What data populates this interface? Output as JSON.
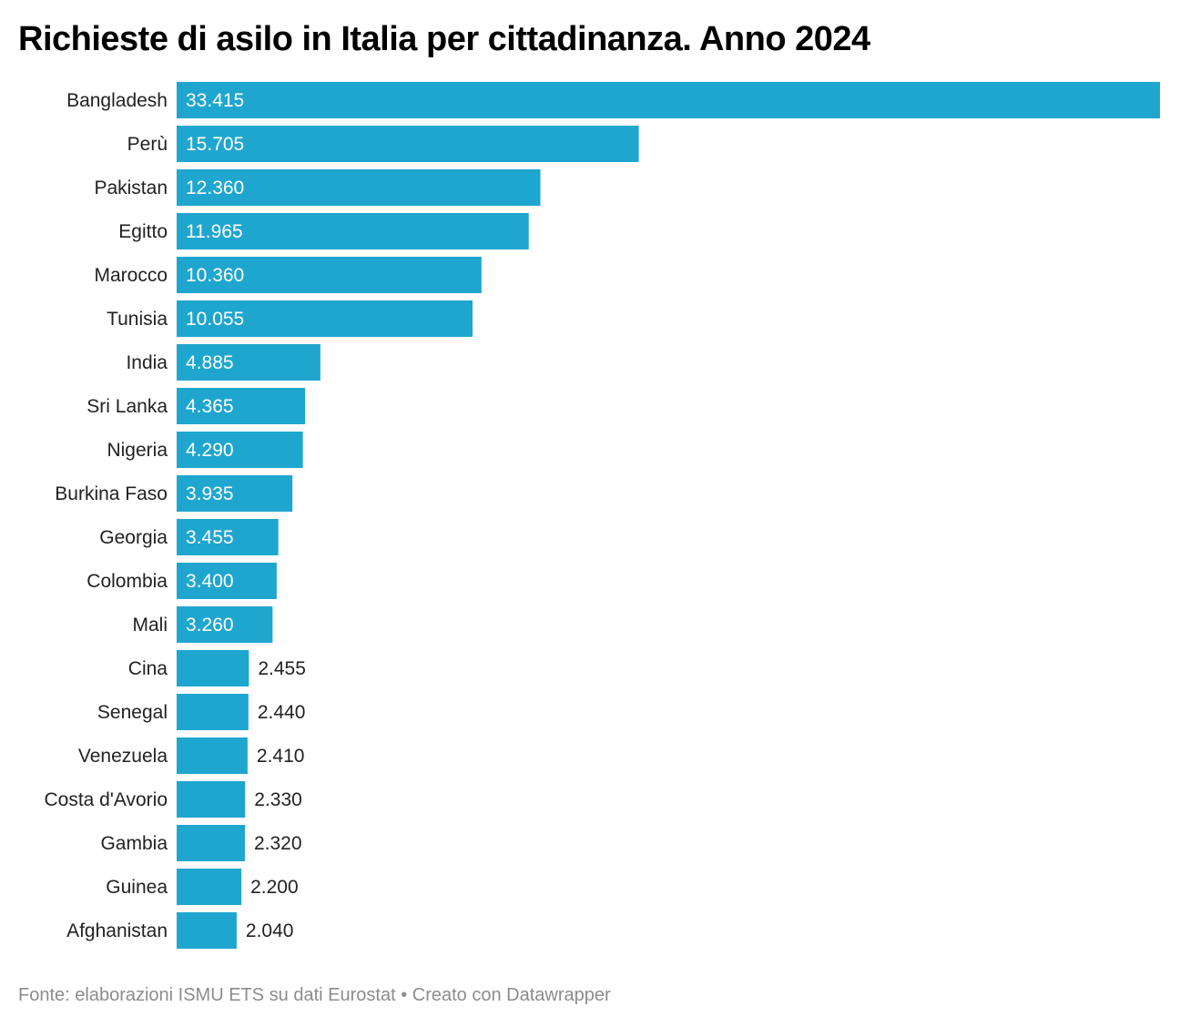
{
  "chart_data": {
    "type": "bar",
    "orientation": "horizontal",
    "title": "Richieste di asilo in Italia per cittadinanza. Anno 2024",
    "xlabel": "",
    "ylabel": "",
    "categories": [
      "Bangladesh",
      "Perù",
      "Pakistan",
      "Egitto",
      "Marocco",
      "Tunisia",
      "India",
      "Sri Lanka",
      "Nigeria",
      "Burkina Faso",
      "Georgia",
      "Colombia",
      "Mali",
      "Cina",
      "Senegal",
      "Venezuela",
      "Costa d'Avorio",
      "Gambia",
      "Guinea",
      "Afghanistan"
    ],
    "values": [
      33415,
      15705,
      12360,
      11965,
      10360,
      10055,
      4885,
      4365,
      4290,
      3935,
      3455,
      3400,
      3260,
      2455,
      2440,
      2410,
      2330,
      2320,
      2200,
      2040
    ],
    "value_labels": [
      "33.415",
      "15.705",
      "12.360",
      "11.965",
      "10.360",
      "10.055",
      "4.885",
      "4.365",
      "4.290",
      "3.935",
      "3.455",
      "3.400",
      "3.260",
      "2.455",
      "2.440",
      "2.410",
      "2.330",
      "2.320",
      "2.200",
      "2.040"
    ],
    "xlim": [
      0,
      33415
    ],
    "grid": false,
    "bar_color": "#1fa6cf"
  },
  "footer": {
    "source": "Fonte: elaborazioni ISMU ETS su dati Eurostat • Creato con Datawrapper"
  }
}
